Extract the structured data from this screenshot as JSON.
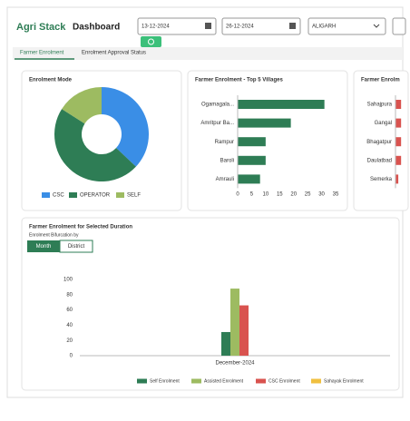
{
  "header": {
    "logo": "Agri Stack",
    "title": "Dashboard",
    "start_date": "13-12-2024",
    "end_date": "26-12-2024",
    "district": "ALIGARH"
  },
  "tabs": [
    "Farmer Enrolment",
    "Enrolment Approval Status"
  ],
  "bifurcation": {
    "label": "Enrolment Bifurcation by",
    "options": [
      "Month",
      "District"
    ]
  },
  "chart_data": [
    {
      "type": "pie",
      "title": "Enrolment Mode",
      "categories": [
        "CSC",
        "OPERATOR",
        "SELF"
      ],
      "values": [
        37,
        47,
        16
      ],
      "colors": [
        "#3a8ee6",
        "#2e7d55",
        "#9dbb61"
      ]
    },
    {
      "type": "hbar",
      "title": "Farmer Enrolment - Top 5 Villages",
      "categories": [
        "Ogamagala...",
        "Amritpur Ba...",
        "Rampur",
        "Baroli",
        "Amrauli"
      ],
      "values": [
        31,
        19,
        10,
        10,
        8
      ],
      "color": "#2e7d55",
      "xlim": [
        0,
        35
      ],
      "xticks": [
        0,
        5,
        10,
        15,
        20,
        25,
        30,
        35
      ]
    },
    {
      "type": "hbar",
      "title": "Farmer Enrolm",
      "categories": [
        "Sahajpura",
        "Gangal",
        "Bhagatpur",
        "Daulatbad",
        "Semerka"
      ],
      "values": [
        2,
        2,
        2,
        2,
        1
      ],
      "color": "#d9534f",
      "xlim": [
        0,
        35
      ]
    },
    {
      "type": "vbar",
      "title": "Farmer Enrolment for Selected Duration",
      "categories": [
        "December-2024"
      ],
      "ylim": [
        0,
        100
      ],
      "yticks": [
        0,
        20,
        40,
        60,
        80,
        100
      ],
      "series": [
        {
          "name": "Self Enrolment",
          "color": "#2e7d55",
          "values": [
            31
          ]
        },
        {
          "name": "Assisted Enrolment",
          "color": "#9dbb61",
          "values": [
            88
          ]
        },
        {
          "name": "CSC Enrolment",
          "color": "#d9534f",
          "values": [
            66
          ]
        },
        {
          "name": "Sahayak Enrolment",
          "color": "#f0c040",
          "values": [
            0
          ]
        }
      ]
    }
  ]
}
